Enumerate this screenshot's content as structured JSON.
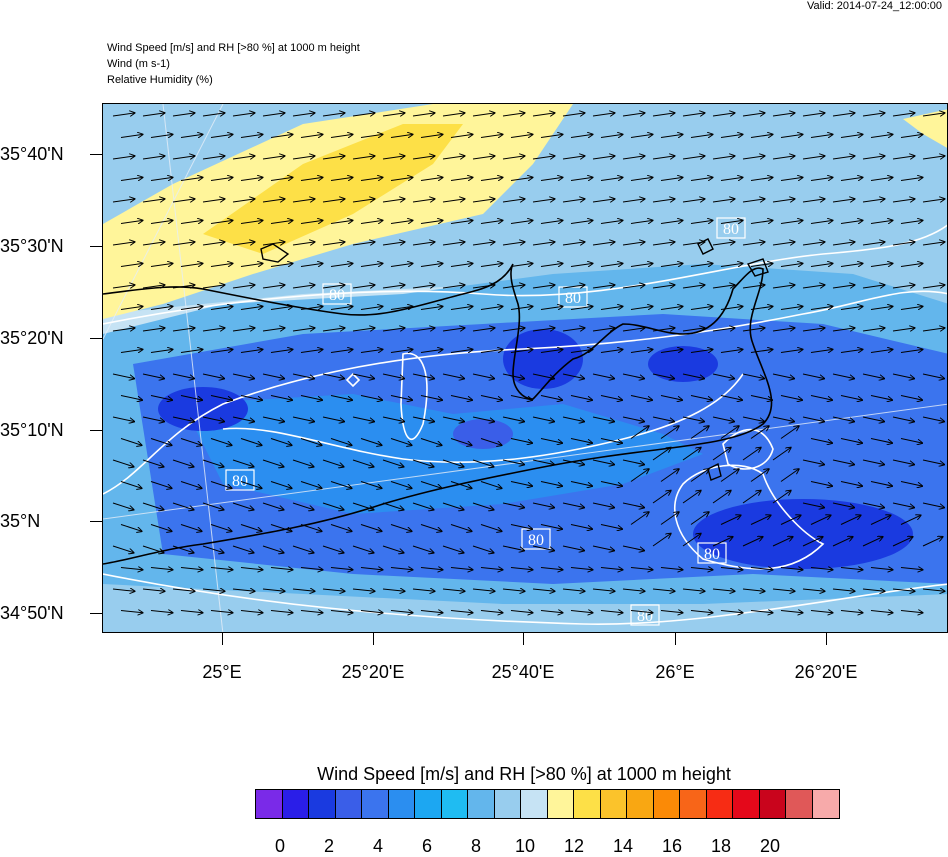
{
  "valid_time": "Valid: 2014-07-24_12:00:00",
  "header": {
    "line1": "Wind Speed [m/s] and RH [>80 %] at 1000 m height",
    "line2": "Wind   (m s-1)",
    "line3": "Relative Humidity   (%)"
  },
  "lat_labels": [
    "35°40'N",
    "35°30'N",
    "35°20'N",
    "35°10'N",
    "35°N",
    "34°50'N"
  ],
  "lon_labels": [
    "25°E",
    "25°20'E",
    "25°40'E",
    "26°E",
    "26°20'E"
  ],
  "contour_label": "80",
  "colorbar": {
    "title": "Wind Speed [m/s] and RH [>80 %] at 1000 m height",
    "labels": [
      "0",
      "2",
      "4",
      "6",
      "8",
      "10",
      "12",
      "14",
      "16",
      "18",
      "20"
    ],
    "colors": [
      "#7a2ae8",
      "#2a1ee8",
      "#1a3ae0",
      "#3a5ee8",
      "#3b74ee",
      "#2b8ef0",
      "#1ca7f2",
      "#1fbcf2",
      "#63b6ec",
      "#98cdee",
      "#c6e3f4",
      "#fff59a",
      "#fde047",
      "#fbc32b",
      "#f9a712",
      "#fb8a06",
      "#f86518",
      "#f72c14",
      "#e4081a",
      "#c9041c",
      "#e05858",
      "#f7aaaa"
    ]
  },
  "colors": {
    "frame": "#000000",
    "contour": "#ffffff",
    "coast": "#000000"
  }
}
